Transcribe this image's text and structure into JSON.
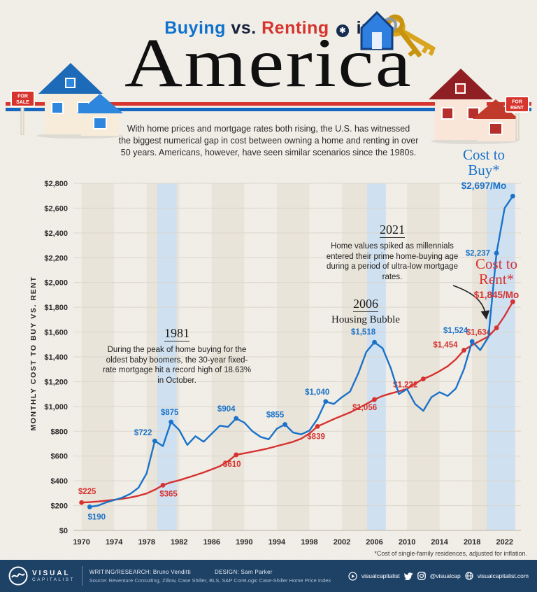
{
  "header": {
    "title_blue": "Buying",
    "title_mid": "vs.",
    "title_red": "Renting",
    "title_tail": "in",
    "badge_glyph": "✱",
    "title_word": "America",
    "intro_lines": [
      "With home prices and mortgage rates both rising, the U.S. has witnessed",
      "the biggest numerical gap in cost between owning a home and renting in over",
      "50 years. Americans, however, have seen similar scenarios since the 1980s."
    ]
  },
  "houses": {
    "sale_lines": [
      "FOR",
      "SALE"
    ],
    "rent_lines": [
      "FOR",
      "RENT"
    ]
  },
  "chart_data": {
    "type": "line",
    "title": "Buying vs. Renting in America",
    "ylabel": "MONTHLY COST TO BUY VS. RENT",
    "xlabel": "",
    "ylim": [
      0,
      2800
    ],
    "ytick_step": 200,
    "ytick_prefix": "$",
    "x_range": [
      1969,
      2024
    ],
    "xticks": [
      1970,
      1974,
      1978,
      1982,
      1986,
      1990,
      1994,
      1998,
      2002,
      2006,
      2010,
      2014,
      2018,
      2022
    ],
    "grid": true,
    "band_gray_color": "#e9e4d9",
    "band_blue_color": "#cfe0f0",
    "bands_gray": [
      [
        1970,
        1974
      ],
      [
        1978,
        1982
      ],
      [
        1986,
        1990
      ],
      [
        1994,
        1998
      ],
      [
        2002,
        2006
      ],
      [
        2010,
        2014
      ],
      [
        2018,
        2022
      ]
    ],
    "bands_blue": [
      [
        1979.3,
        1981.7
      ],
      [
        2005.1,
        2007.4
      ],
      [
        2019.8,
        2023.3
      ]
    ],
    "series": [
      {
        "name": "Cost to Rent",
        "color": "#d63230",
        "x_start": 1970,
        "values": [
          225,
          228,
          233,
          240,
          247,
          255,
          266,
          280,
          298,
          328,
          365,
          388,
          405,
          425,
          446,
          468,
          492,
          518,
          558,
          610,
          622,
          635,
          648,
          663,
          680,
          697,
          715,
          740,
          782,
          839,
          868,
          898,
          925,
          952,
          985,
          1020,
          1056,
          1085,
          1105,
          1122,
          1142,
          1185,
          1222,
          1250,
          1285,
          1325,
          1380,
          1454,
          1495,
          1530,
          1565,
          1634,
          1730,
          1845
        ],
        "points": [
          {
            "year": 1970,
            "value": 225,
            "label": "$225",
            "dx": 8,
            "dy": -12,
            "anchor": "middle"
          },
          {
            "year": 1980,
            "value": 365,
            "label": "$365",
            "dx": 8,
            "dy": 16,
            "anchor": "middle"
          },
          {
            "year": 1989,
            "value": 610,
            "label": "$610",
            "dx": -6,
            "dy": 17,
            "anchor": "middle"
          },
          {
            "year": 1999,
            "value": 839,
            "label": "$839",
            "dx": -2,
            "dy": 18,
            "anchor": "middle"
          },
          {
            "year": 2006,
            "value": 1056,
            "label": "$1,056",
            "dx": -14,
            "dy": 15,
            "anchor": "middle"
          },
          {
            "year": 2012,
            "value": 1222,
            "label": "$1,222",
            "dx": -8,
            "dy": 12,
            "anchor": "end"
          },
          {
            "year": 2017,
            "value": 1454,
            "label": "$1,454",
            "dx": -9,
            "dy": -4,
            "anchor": "end"
          },
          {
            "year": 2021,
            "value": 1634,
            "label": "$1,634",
            "dx": -8,
            "dy": 10,
            "anchor": "end"
          },
          {
            "year": 2023,
            "value": 1845,
            "label": "",
            "dx": 0,
            "dy": 0,
            "anchor": "middle"
          }
        ]
      },
      {
        "name": "Cost to Buy",
        "color": "#1a72c9",
        "x_start": 1971,
        "values": [
          190,
          200,
          225,
          245,
          265,
          295,
          345,
          460,
          722,
          680,
          875,
          810,
          690,
          760,
          715,
          780,
          845,
          835,
          904,
          870,
          800,
          755,
          735,
          820,
          855,
          790,
          775,
          805,
          900,
          1040,
          1020,
          1075,
          1120,
          1265,
          1440,
          1518,
          1470,
          1310,
          1100,
          1140,
          1020,
          965,
          1075,
          1115,
          1085,
          1145,
          1300,
          1524,
          1455,
          1560,
          2237,
          2600,
          2697
        ],
        "points": [
          {
            "year": 1971,
            "value": 190,
            "label": "$190",
            "dx": 10,
            "dy": 18,
            "anchor": "middle"
          },
          {
            "year": 1979,
            "value": 722,
            "label": "$722",
            "dx": -4,
            "dy": -8,
            "anchor": "end"
          },
          {
            "year": 1981,
            "value": 875,
            "label": "$875",
            "dx": -2,
            "dy": -10,
            "anchor": "middle"
          },
          {
            "year": 1989,
            "value": 904,
            "label": "$904",
            "dx": -14,
            "dy": -10,
            "anchor": "middle"
          },
          {
            "year": 1995,
            "value": 855,
            "label": "$855",
            "dx": -14,
            "dy": -10,
            "anchor": "middle"
          },
          {
            "year": 2000,
            "value": 1040,
            "label": "$1,040",
            "dx": -12,
            "dy": -10,
            "anchor": "middle"
          },
          {
            "year": 2006,
            "value": 1518,
            "label": "$1,518",
            "dx": -16,
            "dy": -11,
            "anchor": "middle"
          },
          {
            "year": 2018,
            "value": 1524,
            "label": "$1,524",
            "dx": -6,
            "dy": -12,
            "anchor": "end"
          },
          {
            "year": 2021,
            "value": 2237,
            "label": "$2,237",
            "dx": -9,
            "dy": 4,
            "anchor": "end"
          },
          {
            "year": 2023,
            "value": 2697,
            "label": "",
            "dx": 0,
            "dy": 0,
            "anchor": "middle"
          }
        ]
      }
    ],
    "annotations": [
      {
        "year": "1981",
        "text": "During the peak of home buying for the oldest baby boomers, the 30-year fixed-rate mortgage hit a record high of 18.63% in October."
      },
      {
        "year": "2006",
        "text": "Housing Bubble"
      },
      {
        "year": "2021",
        "text": "Home values spiked as millennials entered their prime home-buying age during a period of ultra-low mortgage rates."
      }
    ],
    "end_labels": {
      "buy": {
        "lines": [
          "Cost to",
          "Buy*"
        ],
        "value": "$2,697/Mo",
        "color": "#1a72c9"
      },
      "rent": {
        "lines": [
          "Cost to",
          "Rent*"
        ],
        "value": "$1,845/Mo",
        "color": "#d63230"
      }
    }
  },
  "footnote": "*Cost of single-family residences, adjusted for inflation.",
  "footer": {
    "logo_line1": "VISUAL",
    "logo_line2": "CAPITALIST",
    "credits_writing": "WRITING/RESEARCH: Bruno Venditti",
    "credits_design": "DESIGN: Sam Parker",
    "source": "Source: Reventure Consulting, Zillow, Case Shiller, BLS, S&P CoreLogic Case-Shiller Home Price Index",
    "youtube": "visualcapitalist",
    "handle": "@visualcap",
    "site": "visualcapitalist.com"
  }
}
